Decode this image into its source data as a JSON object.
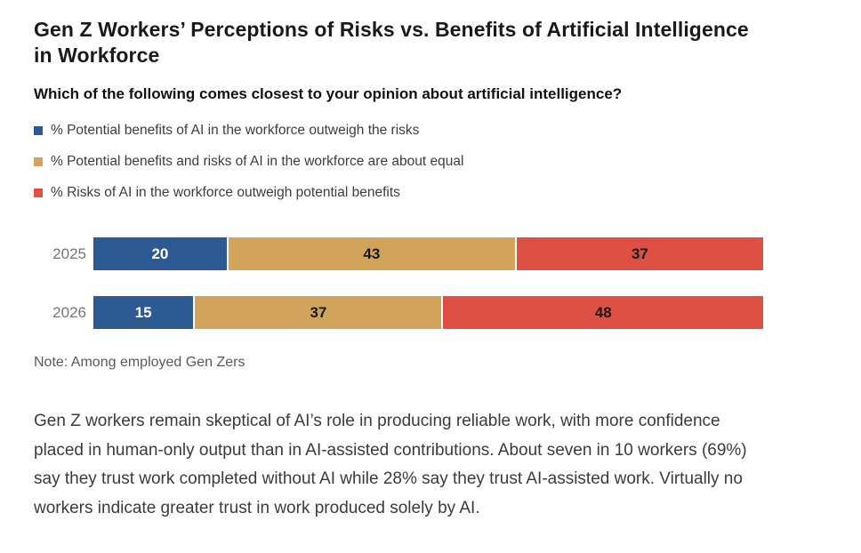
{
  "header": {
    "title_lines": [
      "Gen Z Workers’ Perceptions of Risks vs. Benefits of Artificial Intelligence",
      "in Workforce"
    ],
    "question": "Which of the following comes closest to your opinion about artificial intelligence?"
  },
  "chart_data": {
    "type": "bar",
    "stacked": true,
    "orientation": "horizontal",
    "title": "Gen Z Workers’ Perceptions of Risks vs. Benefits of Artificial Intelligence in Workforce",
    "categories": [
      "2025",
      "2026"
    ],
    "series": [
      {
        "name": "% Potential benefits of AI in the workforce outweigh the risks",
        "color": "#2d5a93",
        "label_color": "#ffffff",
        "values": [
          20,
          15
        ]
      },
      {
        "name": "% Potential benefits and risks of AI in the workforce are about equal",
        "color": "#d2a45b",
        "label_color": "#1a1a1a",
        "values": [
          43,
          37
        ]
      },
      {
        "name": "% Risks of AI in the workforce outweigh potential benefits",
        "color": "#de5044",
        "label_color": "#1a1a1a",
        "values": [
          37,
          48
        ]
      }
    ],
    "xlim": [
      0,
      100
    ],
    "value_unit": "%",
    "legend_position": "top-left",
    "grid": false
  },
  "note": "Note: Among employed Gen Zers",
  "paragraph": "Gen Z workers remain skeptical of AI’s role in producing reliable work, with more confidence placed in human-only output than in AI-assisted contributions. About seven in 10 workers (69%) say they trust work completed without AI while 28% say they trust AI-assisted work. Virtually no workers indicate greater trust in work produced solely by AI."
}
